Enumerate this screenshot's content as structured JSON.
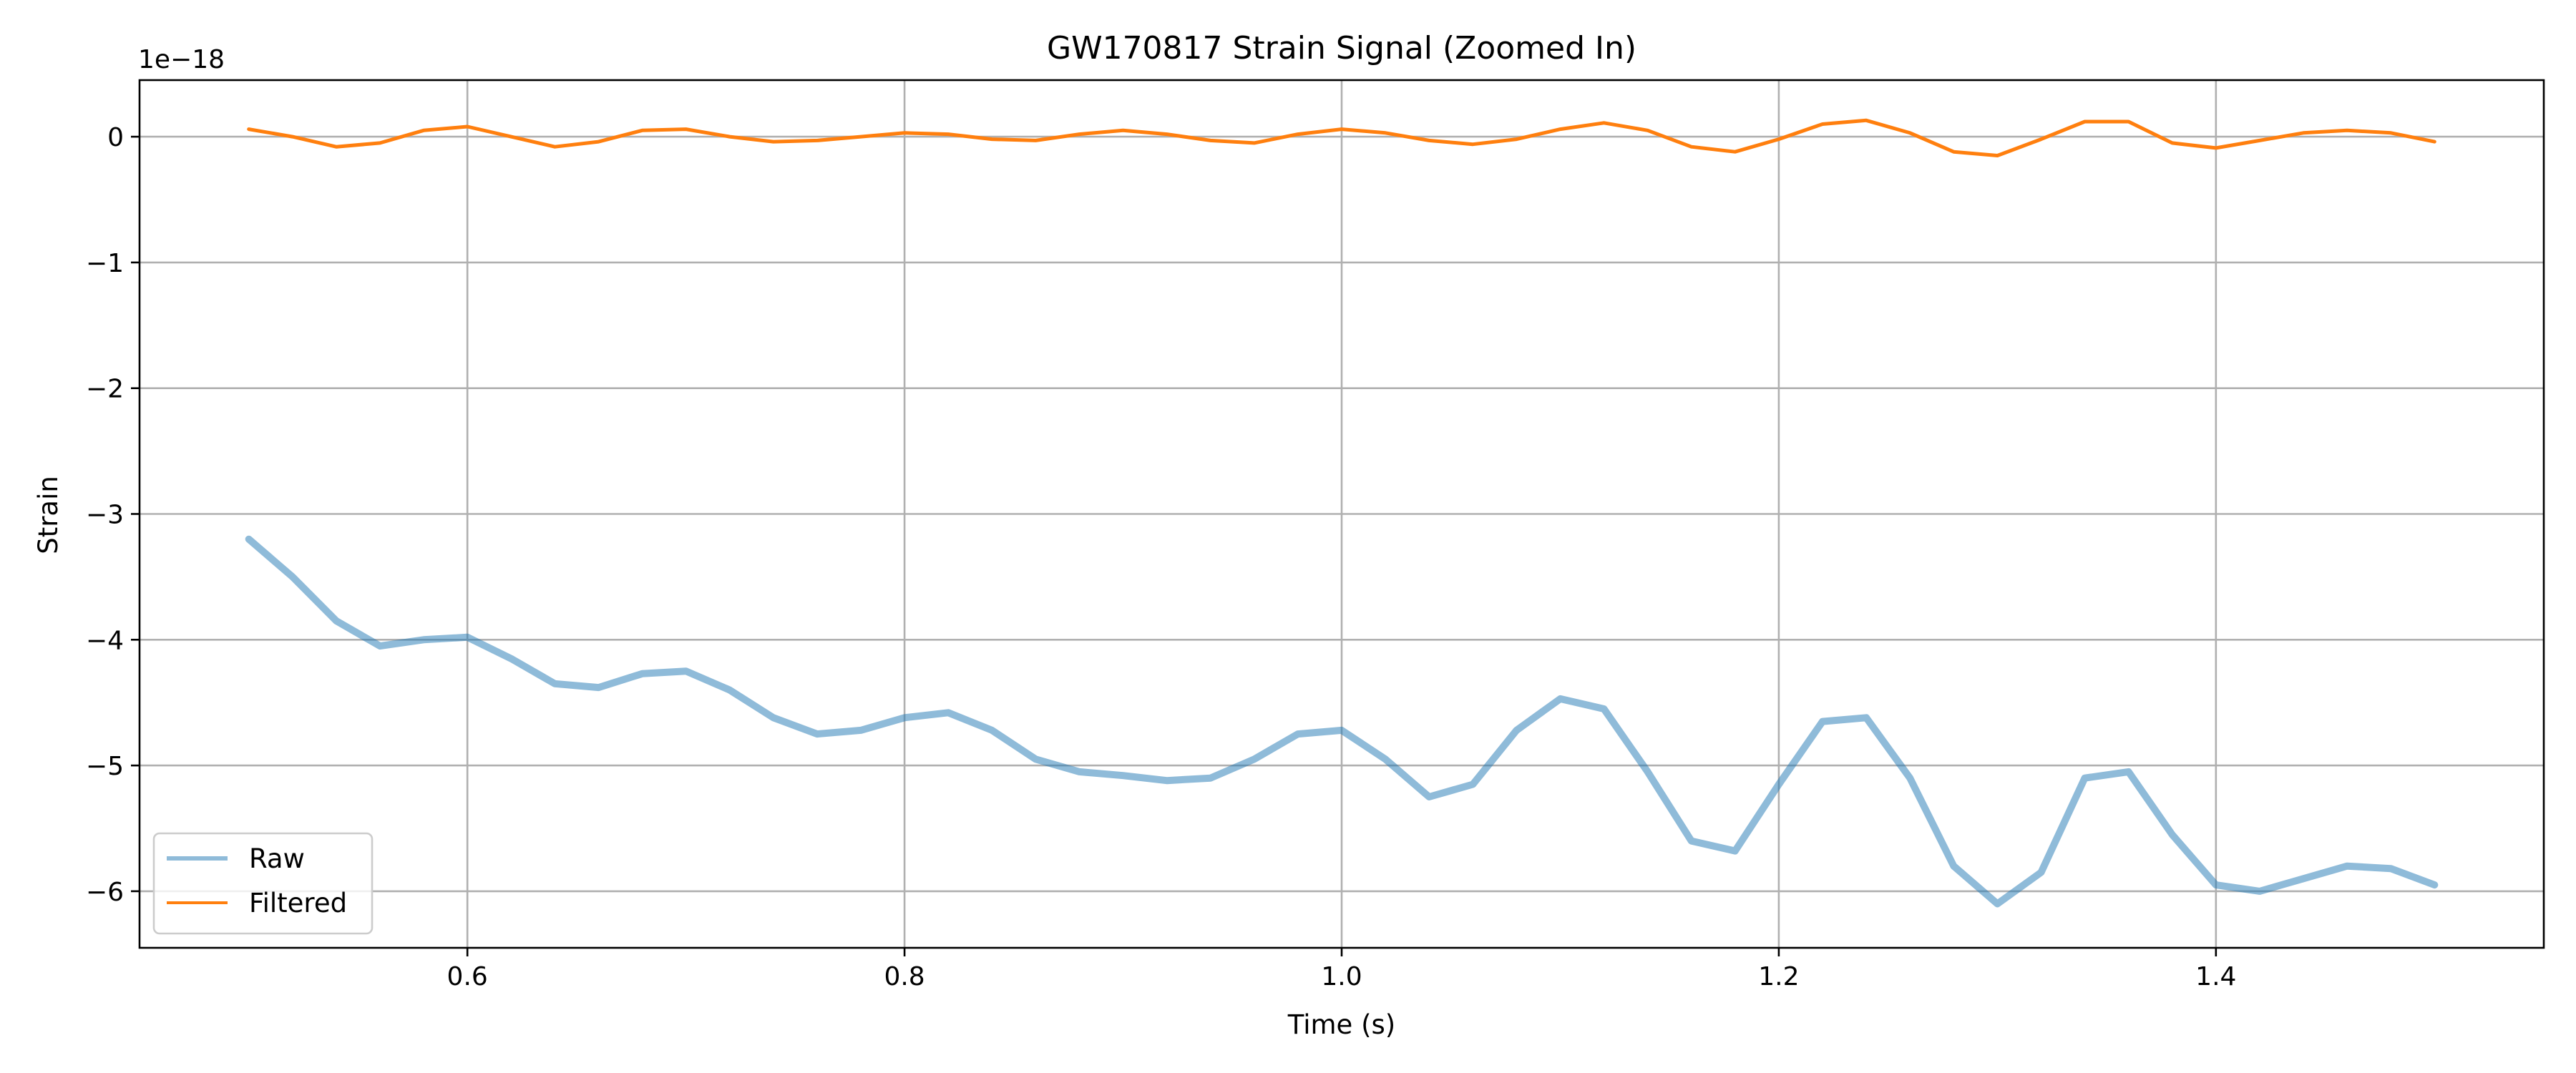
{
  "chart_data": {
    "type": "line",
    "title": "GW170817 Strain Signal (Zoomed In)",
    "xlabel": "Time (s)",
    "ylabel": "Strain",
    "y_offset_label": "1e−18",
    "xlim": [
      0.45,
      1.55
    ],
    "ylim": [
      -6.45,
      0.45
    ],
    "x_ticks": [
      0.6,
      0.8,
      1.0,
      1.2,
      1.4
    ],
    "x_tick_labels": [
      "0.6",
      "0.8",
      "1.0",
      "1.2",
      "1.4"
    ],
    "y_ticks": [
      0,
      -1,
      -2,
      -3,
      -4,
      -5,
      -6
    ],
    "y_tick_labels": [
      "0",
      "−1",
      "−2",
      "−3",
      "−4",
      "−5",
      "−6"
    ],
    "grid": true,
    "legend_position": "bottom-left",
    "series": [
      {
        "name": "Raw",
        "color": "#1f77b4",
        "opacity": 0.5,
        "x": [
          0.5,
          0.52,
          0.54,
          0.56,
          0.58,
          0.6,
          0.62,
          0.64,
          0.66,
          0.68,
          0.7,
          0.72,
          0.74,
          0.76,
          0.78,
          0.8,
          0.82,
          0.84,
          0.86,
          0.88,
          0.9,
          0.92,
          0.94,
          0.96,
          0.98,
          1.0,
          1.02,
          1.04,
          1.06,
          1.08,
          1.1,
          1.12,
          1.14,
          1.16,
          1.18,
          1.2,
          1.22,
          1.24,
          1.26,
          1.28,
          1.3,
          1.32,
          1.34,
          1.36,
          1.38,
          1.4,
          1.42,
          1.44,
          1.46,
          1.48,
          1.5
        ],
        "y": [
          -3.2,
          -3.5,
          -3.85,
          -4.05,
          -4.0,
          -3.98,
          -4.15,
          -4.35,
          -4.38,
          -4.27,
          -4.25,
          -4.4,
          -4.62,
          -4.75,
          -4.72,
          -4.62,
          -4.58,
          -4.72,
          -4.95,
          -5.05,
          -5.08,
          -5.12,
          -5.1,
          -4.95,
          -4.75,
          -4.72,
          -4.95,
          -5.25,
          -5.15,
          -4.72,
          -4.47,
          -4.55,
          -5.05,
          -5.6,
          -5.68,
          -5.15,
          -4.65,
          -4.62,
          -5.1,
          -5.8,
          -6.1,
          -5.85,
          -5.1,
          -5.05,
          -5.55,
          -5.95,
          -6.0,
          -5.9,
          -5.8,
          -5.82,
          -5.95
        ]
      },
      {
        "name": "Filtered",
        "color": "#ff7f0e",
        "opacity": 1,
        "x": [
          0.5,
          0.52,
          0.54,
          0.56,
          0.58,
          0.6,
          0.62,
          0.64,
          0.66,
          0.68,
          0.7,
          0.72,
          0.74,
          0.76,
          0.78,
          0.8,
          0.82,
          0.84,
          0.86,
          0.88,
          0.9,
          0.92,
          0.94,
          0.96,
          0.98,
          1.0,
          1.02,
          1.04,
          1.06,
          1.08,
          1.1,
          1.12,
          1.14,
          1.16,
          1.18,
          1.2,
          1.22,
          1.24,
          1.26,
          1.28,
          1.3,
          1.32,
          1.34,
          1.36,
          1.38,
          1.4,
          1.42,
          1.44,
          1.46,
          1.48,
          1.5
        ],
        "y": [
          0.06,
          0.0,
          -0.08,
          -0.05,
          0.05,
          0.08,
          0.0,
          -0.08,
          -0.04,
          0.05,
          0.06,
          0.0,
          -0.04,
          -0.03,
          0.0,
          0.03,
          0.02,
          -0.02,
          -0.03,
          0.02,
          0.05,
          0.02,
          -0.03,
          -0.05,
          0.02,
          0.06,
          0.03,
          -0.03,
          -0.06,
          -0.02,
          0.06,
          0.11,
          0.05,
          -0.08,
          -0.12,
          -0.02,
          0.1,
          0.13,
          0.03,
          -0.12,
          -0.15,
          -0.02,
          0.12,
          0.12,
          -0.05,
          -0.09,
          -0.03,
          0.03,
          0.05,
          0.03,
          -0.04
        ]
      }
    ]
  }
}
